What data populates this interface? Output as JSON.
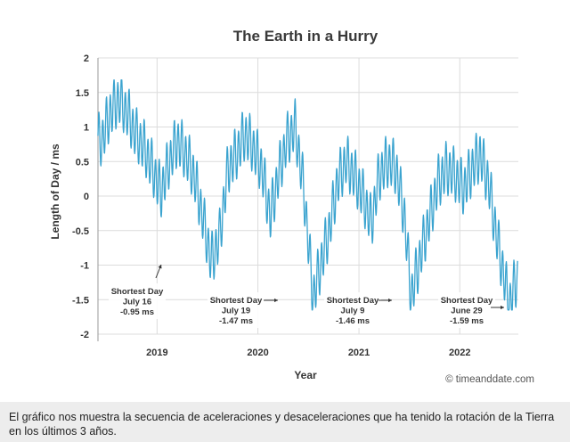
{
  "chart_data": {
    "type": "line",
    "title": "The Earth in a Hurry",
    "xlabel": "Year",
    "ylabel": "Length of Day / ms",
    "xlim": [
      "2018-06-01",
      "2022-08-01"
    ],
    "ylim": [
      -2,
      2
    ],
    "yticks": [
      2,
      1.5,
      1,
      0.5,
      0,
      -0.5,
      -1,
      -1.5,
      -2
    ],
    "ytick_labels": [
      "2",
      "1.5",
      "1",
      "0.5",
      "0",
      "-0.5",
      "-1",
      "-1.5",
      "-2"
    ],
    "xticks": [
      {
        "date": "2019-01-01",
        "label": "2019"
      },
      {
        "date": "2020-01-01",
        "label": "2020"
      },
      {
        "date": "2021-01-01",
        "label": "2021"
      },
      {
        "date": "2022-01-01",
        "label": "2022"
      }
    ],
    "grid": true,
    "line_color": "#3aa3cf",
    "series": [
      {
        "x": [
          "2018-06-15",
          "2018-07-15",
          "2018-08-15",
          "2018-09-15",
          "2018-10-15",
          "2018-11-15",
          "2018-12-15",
          "2019-01-15",
          "2019-02-15",
          "2019-03-15",
          "2019-04-15",
          "2019-05-15",
          "2019-06-15",
          "2019-07-16",
          "2019-08-15",
          "2019-09-15",
          "2019-10-15",
          "2019-11-15",
          "2019-12-15",
          "2020-01-15",
          "2020-02-15",
          "2020-03-15",
          "2020-04-15",
          "2020-05-15",
          "2020-06-15",
          "2020-07-19",
          "2020-08-15",
          "2020-09-15",
          "2020-10-15",
          "2020-11-15",
          "2020-12-15",
          "2021-01-15",
          "2021-02-15",
          "2021-03-15",
          "2021-04-15",
          "2021-05-15",
          "2021-06-15",
          "2021-07-09",
          "2021-08-15",
          "2021-09-15",
          "2021-10-15",
          "2021-11-15",
          "2021-12-15",
          "2022-01-15",
          "2022-02-15",
          "2022-03-15",
          "2022-04-15",
          "2022-05-15",
          "2022-06-29",
          "2022-07-25"
        ],
        "values": [
          0.8,
          1.2,
          1.4,
          1.2,
          0.9,
          0.7,
          0.4,
          0.05,
          0.5,
          0.8,
          0.6,
          0.3,
          -0.3,
          -0.95,
          -0.6,
          0.4,
          0.6,
          0.9,
          0.7,
          0.4,
          -0.3,
          0.3,
          0.8,
          1.0,
          0.1,
          -1.47,
          -1.0,
          -0.5,
          0.2,
          0.5,
          0.3,
          0.0,
          -0.4,
          0.3,
          0.5,
          0.4,
          -0.3,
          -1.46,
          -0.8,
          -0.3,
          0.2,
          0.4,
          0.3,
          0.1,
          0.4,
          0.6,
          0.2,
          -0.6,
          -1.59,
          -1.2
        ]
      }
    ],
    "annotations": [
      {
        "lines": [
          "Shortest Day",
          "July 16",
          "-0.95 ms"
        ],
        "date": "2019-07-16",
        "value": -0.95
      },
      {
        "lines": [
          "Shortest Day",
          "July 19",
          "-1.47 ms"
        ],
        "date": "2020-07-19",
        "value": -1.47
      },
      {
        "lines": [
          "Shortest Day",
          "July 9",
          "-1.46 ms"
        ],
        "date": "2021-07-09",
        "value": -1.46
      },
      {
        "lines": [
          "Shortest Day",
          "June 29",
          "-1.59 ms"
        ],
        "date": "2022-06-29",
        "value": -1.59
      }
    ]
  },
  "credit": "© timeanddate.com",
  "caption": "El gráfico nos muestra la secuencia de aceleraciones y desaceleraciones que ha tenido la rotación de la Tierra en los últimos 3 años."
}
